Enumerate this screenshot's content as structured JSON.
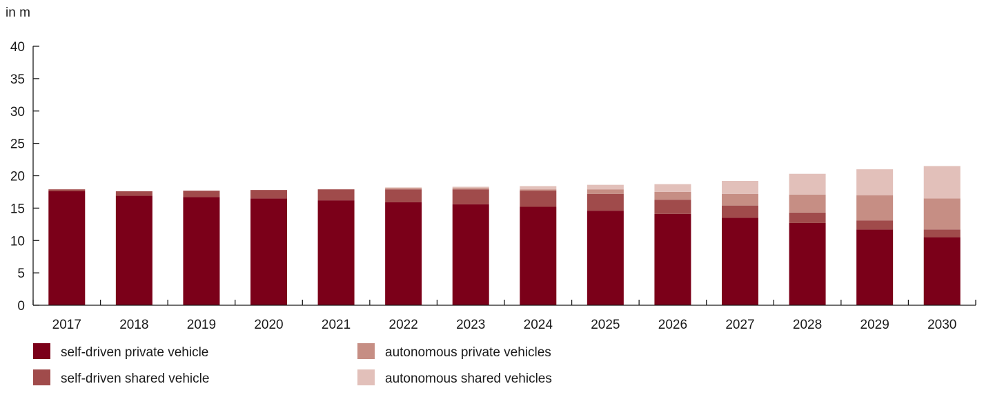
{
  "chart_data": {
    "type": "bar",
    "stacked": true,
    "unit_label": "in m",
    "title": "",
    "xlabel": "",
    "ylabel": "",
    "ylim": [
      0,
      40
    ],
    "yticks": [
      0,
      5,
      10,
      15,
      20,
      25,
      30,
      35,
      40
    ],
    "grid": false,
    "legend_position": "bottom-left",
    "categories": [
      "2017",
      "2018",
      "2019",
      "2020",
      "2021",
      "2022",
      "2023",
      "2024",
      "2025",
      "2026",
      "2027",
      "2028",
      "2029",
      "2030"
    ],
    "series": [
      {
        "name": "self-driven private vehicle",
        "color": "#7b0019",
        "values": [
          17.6,
          16.9,
          16.7,
          16.5,
          16.2,
          15.9,
          15.6,
          15.2,
          14.6,
          14.1,
          13.5,
          12.7,
          11.7,
          10.5
        ]
      },
      {
        "name": "self-driven shared vehicle",
        "color": "#a04b4b",
        "values": [
          0.3,
          0.7,
          1.0,
          1.3,
          1.7,
          2.0,
          2.3,
          2.5,
          2.6,
          2.2,
          1.9,
          1.6,
          1.4,
          1.2
        ]
      },
      {
        "name": "autonomous private vehicles",
        "color": "#c68e84",
        "values": [
          0.0,
          0.0,
          0.0,
          0.0,
          0.0,
          0.2,
          0.2,
          0.2,
          0.7,
          1.2,
          1.8,
          2.8,
          3.9,
          4.8
        ]
      },
      {
        "name": "autonomous shared vehicles",
        "color": "#e2c0ba",
        "values": [
          0.0,
          0.0,
          0.0,
          0.0,
          0.0,
          0.1,
          0.2,
          0.5,
          0.7,
          1.2,
          2.0,
          3.2,
          4.0,
          5.0
        ]
      }
    ]
  }
}
